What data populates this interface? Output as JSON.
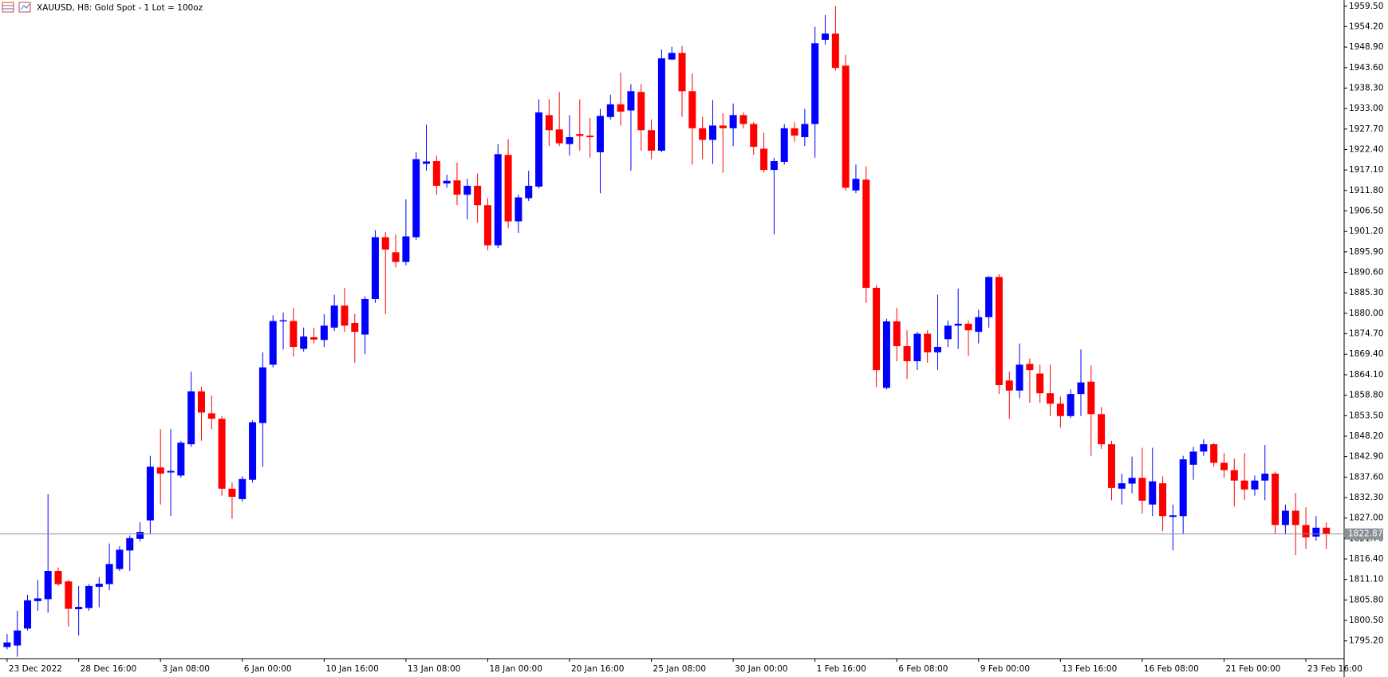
{
  "chart_data": {
    "type": "candlestick",
    "title": "XAUUSD, H8:  Gold  Spot - 1 Lot = 100oz",
    "categories": [
      "23 Dec 2022",
      null,
      null,
      null,
      null,
      null,
      null,
      "28 Dec 16:00",
      null,
      null,
      null,
      null,
      null,
      null,
      null,
      "3 Jan 08:00",
      null,
      null,
      null,
      null,
      null,
      null,
      null,
      "6 Jan 00:00",
      null,
      null,
      null,
      null,
      null,
      null,
      null,
      "10 Jan 16:00",
      null,
      null,
      null,
      null,
      null,
      null,
      null,
      "13 Jan 08:00",
      null,
      null,
      null,
      null,
      null,
      null,
      null,
      "18 Jan 00:00",
      null,
      null,
      null,
      null,
      null,
      null,
      null,
      "20 Jan 16:00",
      null,
      null,
      null,
      null,
      null,
      null,
      null,
      "25 Jan 08:00",
      null,
      null,
      null,
      null,
      null,
      null,
      null,
      "30 Jan 00:00",
      null,
      null,
      null,
      null,
      null,
      null,
      null,
      "1 Feb 16:00",
      null,
      null,
      null,
      null,
      null,
      null,
      null,
      "6 Feb 08:00",
      null,
      null,
      null,
      null,
      null,
      null,
      null,
      "9 Feb 00:00",
      null,
      null,
      null,
      null,
      null,
      null,
      null,
      "13 Feb 16:00",
      null,
      null,
      null,
      null,
      null,
      null,
      null,
      "16 Feb 08:00",
      null,
      null,
      null,
      null,
      null,
      null,
      null,
      "21 Feb 00:00",
      null,
      null,
      null,
      null,
      null,
      null,
      null,
      "23 Feb 16:00",
      null,
      null
    ],
    "open": [
      1793.6,
      1794.0,
      1798.4,
      1805.5,
      1806.0,
      1813.3,
      1810.6,
      1803.4,
      1803.7,
      1809.2,
      1809.9,
      1813.8,
      1818.6,
      1821.6,
      1826.4,
      1840.1,
      1838.8,
      1838.0,
      1846.1,
      1859.8,
      1854.1,
      1852.7,
      1834.6,
      1831.9,
      1836.9,
      1851.6,
      1866.7,
      1877.9,
      1878.0,
      1870.8,
      1873.8,
      1873.1,
      1876.3,
      1882.0,
      1877.5,
      1874.5,
      1883.7,
      1899.7,
      1895.8,
      1893.3,
      1899.7,
      1918.7,
      1919.4,
      1913.6,
      1914.4,
      1910.7,
      1913.0,
      1908.0,
      1897.6,
      1921.0,
      1903.8,
      1909.8,
      1912.8,
      1931.3,
      1927.6,
      1923.8,
      1926.4,
      1926.0,
      1921.7,
      1930.8,
      1934.1,
      1932.5,
      1937.3,
      1927.4,
      1922.1,
      1945.7,
      1947.4,
      1937.5,
      1927.9,
      1924.9,
      1928.6,
      1927.9,
      1931.3,
      1929.0,
      1922.6,
      1917.1,
      1919.2,
      1927.9,
      1925.6,
      1929.0,
      1950.8,
      1952.4,
      1944.1,
      1911.8,
      1914.6,
      1886.6,
      1860.7,
      1877.9,
      1871.5,
      1867.6,
      1874.7,
      1869.9,
      1873.3,
      1876.8,
      1877.3,
      1875.2,
      1879.0,
      1889.4,
      1862.6,
      1860.0,
      1866.9,
      1864.4,
      1859.3,
      1856.6,
      1853.4,
      1859.1,
      1862.3,
      1853.9,
      1846.1,
      1834.6,
      1835.9,
      1837.4,
      1830.5,
      1836.0,
      1827.3,
      1827.5,
      1840.8,
      1844.2,
      1846.1,
      1841.3,
      1839.4,
      1836.7,
      1834.4,
      1836.7,
      1838.5,
      1825.2,
      1828.9,
      1825.2,
      1822.2,
      1824.5
    ],
    "high": [
      1797.0,
      1803.0,
      1807.1,
      1811.0,
      1833.2,
      1814.2,
      1811.0,
      1809.4,
      1809.9,
      1811.7,
      1820.4,
      1819.7,
      1822.5,
      1825.9,
      1843.1,
      1850.0,
      1850.0,
      1847.0,
      1864.9,
      1861.0,
      1858.7,
      1853.4,
      1836.2,
      1837.8,
      1852.3,
      1869.9,
      1879.5,
      1880.2,
      1881.4,
      1876.3,
      1876.3,
      1879.8,
      1884.8,
      1886.6,
      1879.8,
      1884.4,
      1901.5,
      1901.0,
      1900.4,
      1909.5,
      1921.7,
      1928.8,
      1920.8,
      1915.9,
      1919.0,
      1914.8,
      1916.2,
      1909.8,
      1923.8,
      1925.1,
      1910.7,
      1916.9,
      1935.4,
      1935.4,
      1937.3,
      1931.3,
      1935.4,
      1930.6,
      1932.9,
      1936.6,
      1942.3,
      1939.3,
      1939.3,
      1930.2,
      1948.3,
      1949.0,
      1949.2,
      1942.1,
      1930.9,
      1935.2,
      1931.8,
      1934.3,
      1932.0,
      1929.5,
      1926.7,
      1920.3,
      1929.0,
      1929.5,
      1932.9,
      1954.2,
      1957.2,
      1959.5,
      1946.9,
      1918.5,
      1918.0,
      1887.3,
      1878.6,
      1881.4,
      1875.6,
      1875.2,
      1875.6,
      1884.8,
      1878.1,
      1886.4,
      1878.1,
      1880.9,
      1889.6,
      1890.1,
      1864.9,
      1872.2,
      1868.3,
      1866.7,
      1866.7,
      1858.4,
      1860.3,
      1870.6,
      1866.5,
      1855.7,
      1847.0,
      1838.5,
      1842.9,
      1845.2,
      1845.2,
      1837.8,
      1830.5,
      1843.1,
      1845.4,
      1847.4,
      1846.5,
      1843.8,
      1842.4,
      1843.8,
      1838.0,
      1845.9,
      1839.0,
      1830.5,
      1833.5,
      1829.8,
      1827.5,
      1825.9
    ],
    "low": [
      1793.0,
      1791.1,
      1797.9,
      1803.0,
      1802.5,
      1809.4,
      1798.9,
      1796.6,
      1803.0,
      1803.9,
      1808.3,
      1813.3,
      1813.3,
      1820.9,
      1822.9,
      1830.5,
      1827.5,
      1837.4,
      1845.4,
      1847.0,
      1850.0,
      1832.8,
      1826.8,
      1831.2,
      1836.2,
      1840.3,
      1866.0,
      1870.6,
      1868.8,
      1870.1,
      1872.2,
      1871.3,
      1875.4,
      1875.2,
      1867.2,
      1869.4,
      1882.7,
      1879.8,
      1891.9,
      1892.4,
      1899.0,
      1916.9,
      1910.7,
      1912.5,
      1908.0,
      1904.3,
      1903.4,
      1896.3,
      1896.9,
      1902.0,
      1900.8,
      1909.1,
      1912.3,
      1923.3,
      1923.3,
      1920.8,
      1922.1,
      1920.3,
      1911.1,
      1930.1,
      1928.6,
      1916.9,
      1922.1,
      1919.9,
      1921.7,
      1945.5,
      1930.9,
      1918.5,
      1919.9,
      1918.7,
      1916.4,
      1923.3,
      1927.9,
      1921.0,
      1916.4,
      1900.4,
      1918.5,
      1924.4,
      1923.3,
      1920.3,
      1949.6,
      1942.8,
      1911.8,
      1911.1,
      1882.7,
      1860.9,
      1860.3,
      1867.6,
      1863.0,
      1865.3,
      1867.2,
      1865.3,
      1871.3,
      1870.8,
      1869.0,
      1872.2,
      1876.3,
      1859.1,
      1852.7,
      1858.0,
      1856.8,
      1856.8,
      1853.4,
      1850.4,
      1852.9,
      1853.4,
      1843.1,
      1844.9,
      1831.6,
      1830.5,
      1833.4,
      1828.2,
      1827.5,
      1823.6,
      1818.6,
      1822.9,
      1836.9,
      1843.1,
      1840.3,
      1837.4,
      1830.0,
      1831.6,
      1832.8,
      1831.6,
      1822.9,
      1822.9,
      1817.4,
      1819.0,
      1821.1,
      1819.0
    ],
    "close": [
      1794.8,
      1797.9,
      1805.7,
      1806.2,
      1813.3,
      1809.9,
      1803.5,
      1804.0,
      1809.4,
      1810.0,
      1815.1,
      1818.8,
      1821.8,
      1823.4,
      1840.3,
      1838.5,
      1839.2,
      1846.5,
      1859.8,
      1854.3,
      1852.7,
      1834.6,
      1832.5,
      1837.1,
      1851.8,
      1866.0,
      1878.0,
      1878.2,
      1871.3,
      1874.0,
      1873.2,
      1876.8,
      1882.0,
      1876.8,
      1875.2,
      1883.7,
      1899.7,
      1896.5,
      1893.3,
      1899.9,
      1919.9,
      1919.3,
      1913.0,
      1914.3,
      1910.7,
      1913.0,
      1908.0,
      1897.6,
      1921.2,
      1903.8,
      1910.0,
      1913.0,
      1932.0,
      1927.4,
      1924.0,
      1925.6,
      1925.9,
      1925.6,
      1931.1,
      1934.1,
      1932.2,
      1937.5,
      1927.4,
      1922.1,
      1946.0,
      1947.4,
      1937.5,
      1927.9,
      1924.9,
      1928.6,
      1927.9,
      1931.3,
      1929.0,
      1923.1,
      1917.1,
      1919.4,
      1927.9,
      1926.0,
      1929.0,
      1949.9,
      1952.4,
      1943.5,
      1912.5,
      1914.8,
      1886.6,
      1865.3,
      1877.9,
      1871.5,
      1867.6,
      1874.7,
      1869.9,
      1871.3,
      1876.8,
      1877.3,
      1875.6,
      1879.0,
      1889.4,
      1861.4,
      1860.0,
      1866.7,
      1865.3,
      1859.3,
      1856.6,
      1853.4,
      1859.1,
      1862.1,
      1853.9,
      1846.1,
      1834.8,
      1836.0,
      1837.4,
      1831.5,
      1836.5,
      1827.5,
      1827.7,
      1842.2,
      1844.2,
      1846.1,
      1841.3,
      1839.4,
      1836.7,
      1834.4,
      1836.7,
      1838.5,
      1825.2,
      1828.9,
      1825.2,
      1822.0,
      1824.5,
      1822.9
    ],
    "up_color": "#0000ff",
    "down_color": "#ff0000",
    "ylim": [
      1790.6,
      1961.1
    ],
    "yticks": [
      {
        "value": 1959.5,
        "label": "1959.50"
      },
      {
        "value": 1954.2,
        "label": "1954.20"
      },
      {
        "value": 1948.9,
        "label": "1948.90"
      },
      {
        "value": 1943.6,
        "label": "1943.60"
      },
      {
        "value": 1938.3,
        "label": "1938.30"
      },
      {
        "value": 1933.0,
        "label": "1933.00"
      },
      {
        "value": 1927.7,
        "label": "1927.70"
      },
      {
        "value": 1922.4,
        "label": "1922.40"
      },
      {
        "value": 1917.1,
        "label": "1917.10"
      },
      {
        "value": 1911.8,
        "label": "1911.80"
      },
      {
        "value": 1906.5,
        "label": "1906.50"
      },
      {
        "value": 1901.2,
        "label": "1901.20"
      },
      {
        "value": 1895.9,
        "label": "1895.90"
      },
      {
        "value": 1890.6,
        "label": "1890.60"
      },
      {
        "value": 1885.3,
        "label": "1885.30"
      },
      {
        "value": 1880.0,
        "label": "1880.00"
      },
      {
        "value": 1874.7,
        "label": "1874.70"
      },
      {
        "value": 1869.4,
        "label": "1869.40"
      },
      {
        "value": 1864.1,
        "label": "1864.10"
      },
      {
        "value": 1858.8,
        "label": "1858.80"
      },
      {
        "value": 1853.5,
        "label": "1853.50"
      },
      {
        "value": 1848.2,
        "label": "1848.20"
      },
      {
        "value": 1842.9,
        "label": "1842.90"
      },
      {
        "value": 1837.6,
        "label": "1837.60"
      },
      {
        "value": 1832.3,
        "label": "1832.30"
      },
      {
        "value": 1827.0,
        "label": "1827.00"
      },
      {
        "value": 1821.7,
        "label": "1821.70"
      },
      {
        "value": 1816.4,
        "label": "1816.40"
      },
      {
        "value": 1811.1,
        "label": "1811.10"
      },
      {
        "value": 1805.8,
        "label": "1805.80"
      },
      {
        "value": 1800.5,
        "label": "1800.50"
      },
      {
        "value": 1795.2,
        "label": "1795.20"
      }
    ],
    "grid": false,
    "current_price": {
      "value": 1822.87,
      "label": "1822.87"
    }
  }
}
